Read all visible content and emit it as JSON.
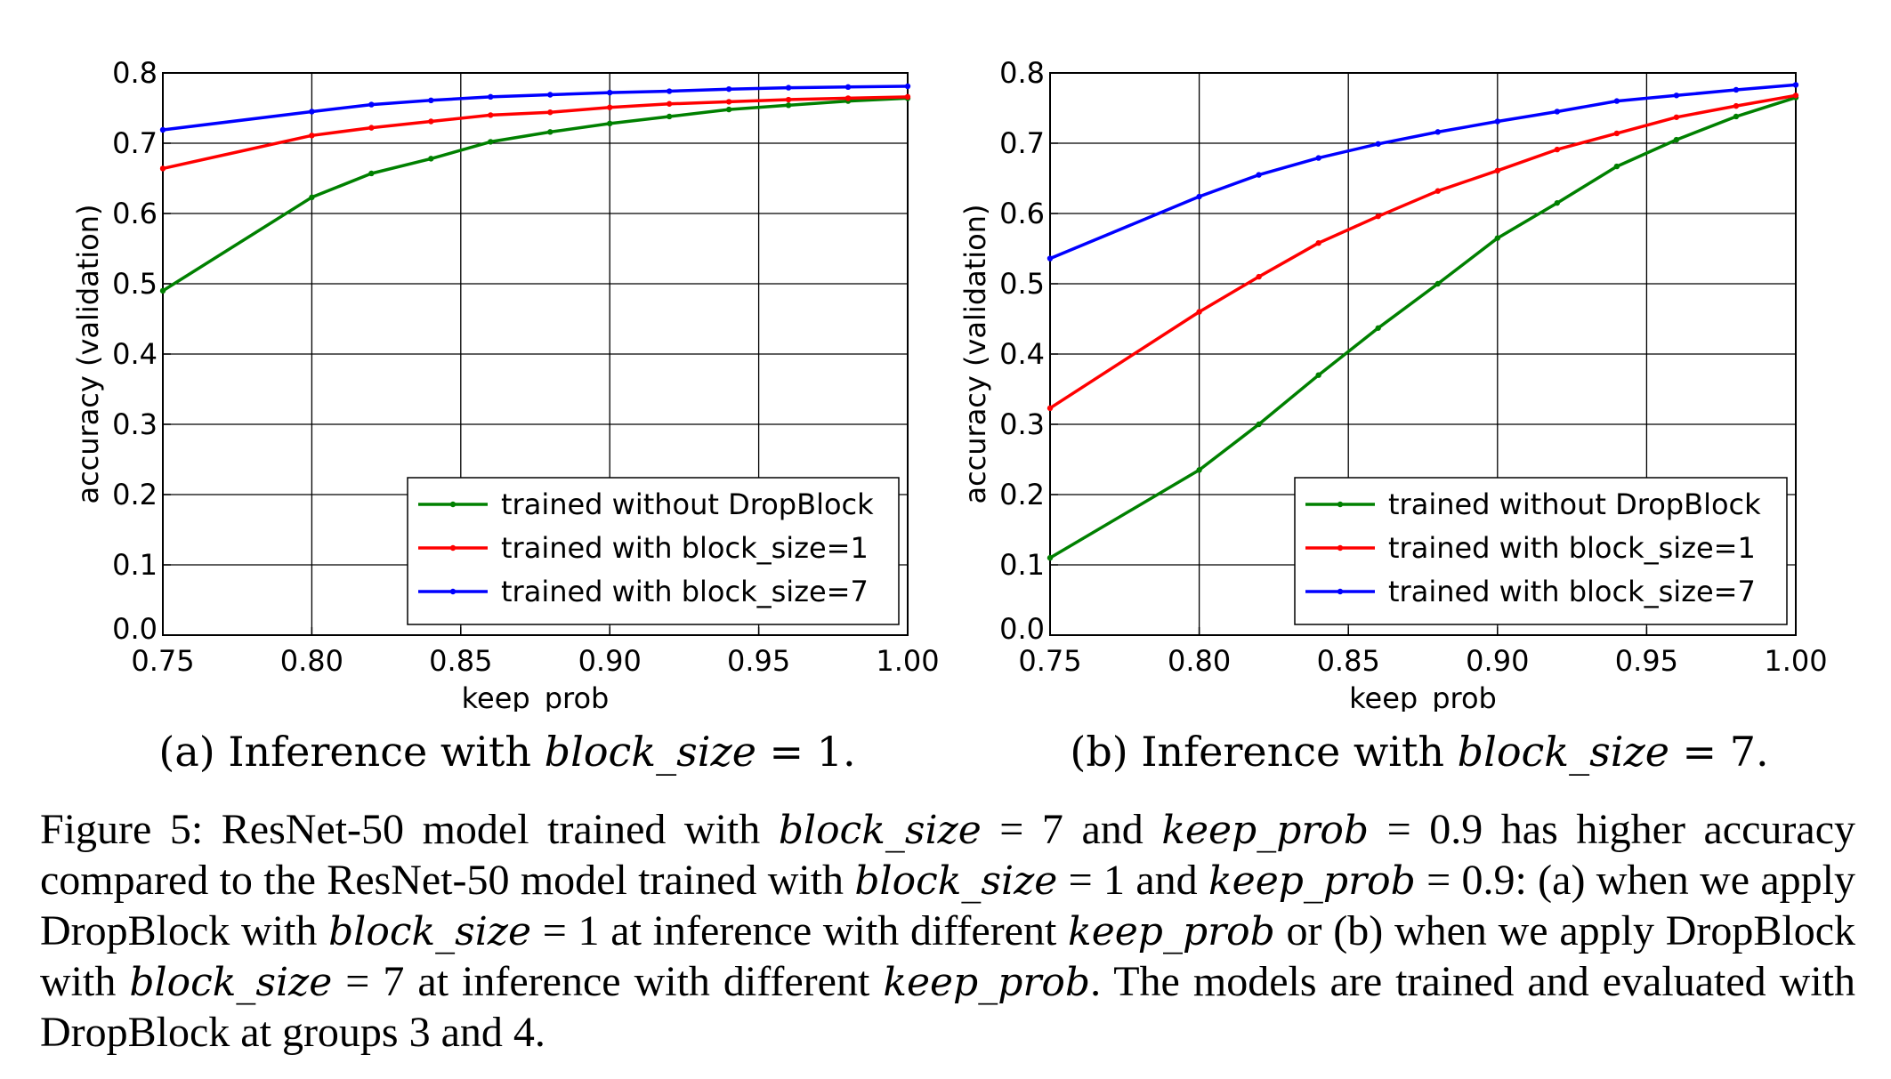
{
  "chart_data": [
    {
      "type": "line",
      "caption_prefix": "(a) Inference with",
      "caption_math": "block_size",
      "caption_eq": "= 1.",
      "xlabel": "keep_prob",
      "ylabel": "accuracy (validation)",
      "xlim": [
        0.75,
        1.0
      ],
      "ylim": [
        0.0,
        0.8
      ],
      "xticks": [
        "0.75",
        "0.80",
        "0.85",
        "0.90",
        "0.95",
        "1.00"
      ],
      "yticks": [
        "0.0",
        "0.1",
        "0.2",
        "0.3",
        "0.4",
        "0.5",
        "0.6",
        "0.7",
        "0.8"
      ],
      "grid": true,
      "legend_position": "lower-right",
      "series": [
        {
          "name": "trained without DropBlock",
          "color": "#008000",
          "x": [
            0.75,
            0.8,
            0.82,
            0.84,
            0.86,
            0.88,
            0.9,
            0.92,
            0.94,
            0.96,
            0.98,
            1.0
          ],
          "y": [
            0.49,
            0.623,
            0.657,
            0.678,
            0.702,
            0.716,
            0.728,
            0.738,
            0.748,
            0.754,
            0.76,
            0.764
          ]
        },
        {
          "name": "trained with block_size=1",
          "color": "#ff0000",
          "x": [
            0.75,
            0.8,
            0.82,
            0.84,
            0.86,
            0.88,
            0.9,
            0.92,
            0.94,
            0.96,
            0.98,
            1.0
          ],
          "y": [
            0.664,
            0.711,
            0.722,
            0.731,
            0.74,
            0.744,
            0.751,
            0.756,
            0.759,
            0.762,
            0.764,
            0.766
          ]
        },
        {
          "name": "trained with block_size=7",
          "color": "#0000ff",
          "x": [
            0.75,
            0.8,
            0.82,
            0.84,
            0.86,
            0.88,
            0.9,
            0.92,
            0.94,
            0.96,
            0.98,
            1.0
          ],
          "y": [
            0.719,
            0.745,
            0.755,
            0.761,
            0.766,
            0.769,
            0.772,
            0.774,
            0.777,
            0.779,
            0.78,
            0.781
          ]
        }
      ]
    },
    {
      "type": "line",
      "caption_prefix": "(b) Inference with",
      "caption_math": "block_size",
      "caption_eq": "= 7.",
      "xlabel": "keep_prob",
      "ylabel": "accuracy (validation)",
      "xlim": [
        0.75,
        1.0
      ],
      "ylim": [
        0.0,
        0.8
      ],
      "xticks": [
        "0.75",
        "0.80",
        "0.85",
        "0.90",
        "0.95",
        "1.00"
      ],
      "yticks": [
        "0.0",
        "0.1",
        "0.2",
        "0.3",
        "0.4",
        "0.5",
        "0.6",
        "0.7",
        "0.8"
      ],
      "grid": true,
      "legend_position": "lower-right",
      "series": [
        {
          "name": "trained without DropBlock",
          "color": "#008000",
          "x": [
            0.75,
            0.8,
            0.82,
            0.84,
            0.86,
            0.88,
            0.9,
            0.92,
            0.94,
            0.96,
            0.98,
            1.0
          ],
          "y": [
            0.11,
            0.235,
            0.3,
            0.37,
            0.437,
            0.5,
            0.565,
            0.615,
            0.667,
            0.705,
            0.738,
            0.765
          ]
        },
        {
          "name": "trained with block_size=1",
          "color": "#ff0000",
          "x": [
            0.75,
            0.8,
            0.82,
            0.84,
            0.86,
            0.88,
            0.9,
            0.92,
            0.94,
            0.96,
            0.98,
            1.0
          ],
          "y": [
            0.323,
            0.46,
            0.51,
            0.558,
            0.596,
            0.632,
            0.661,
            0.691,
            0.714,
            0.737,
            0.753,
            0.768
          ]
        },
        {
          "name": "trained with block_size=7",
          "color": "#0000ff",
          "x": [
            0.75,
            0.8,
            0.82,
            0.84,
            0.86,
            0.88,
            0.9,
            0.92,
            0.94,
            0.96,
            0.98,
            1.0
          ],
          "y": [
            0.536,
            0.624,
            0.655,
            0.679,
            0.699,
            0.716,
            0.731,
            0.745,
            0.76,
            0.768,
            0.776,
            0.783
          ]
        }
      ]
    }
  ],
  "figure_caption": {
    "p1": "Figure 5: ResNet-50 model trained with ",
    "m1": "block_size",
    "p2": " = 7 and ",
    "m2": "keep_prob",
    "p3": " = 0.9 has higher accuracy compared to the ResNet-50 model trained with ",
    "m3": "block_size",
    "p4": " = 1 and ",
    "m4": "keep_prob",
    "p5": " = 0.9: (a) when we apply DropBlock with ",
    "m5": "block_size",
    "p6": " = 1 at inference with different ",
    "m6": "keep_prob",
    "p7": " or (b) when we apply DropBlock with ",
    "m7": "block_size",
    "p8": " = 7 at inference with different ",
    "m8": "keep_prob",
    "p9": ". The models are trained and evaluated with DropBlock at groups 3 and 4."
  }
}
